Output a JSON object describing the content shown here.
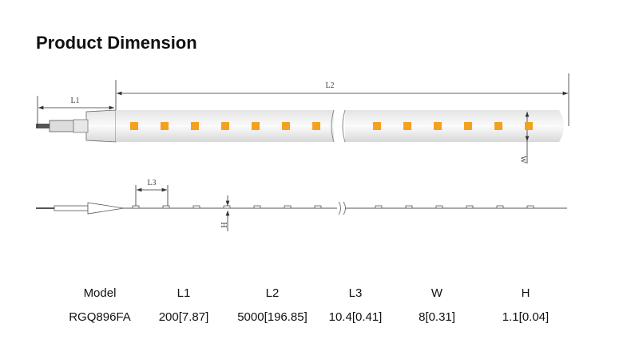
{
  "title": "Product Dimension",
  "diagram": {
    "labels": {
      "l1": "L1",
      "l2": "L2",
      "l3": "L3",
      "w": "W",
      "h": "H"
    }
  },
  "table": {
    "headers": [
      "Model",
      "L1",
      "L2",
      "L3",
      "W",
      "H"
    ],
    "rows": [
      [
        "RGQ896FA",
        "200[7.87]",
        "5000[196.85]",
        "10.4[0.41]",
        "8[0.31]",
        "1.1[0.04]"
      ]
    ]
  }
}
